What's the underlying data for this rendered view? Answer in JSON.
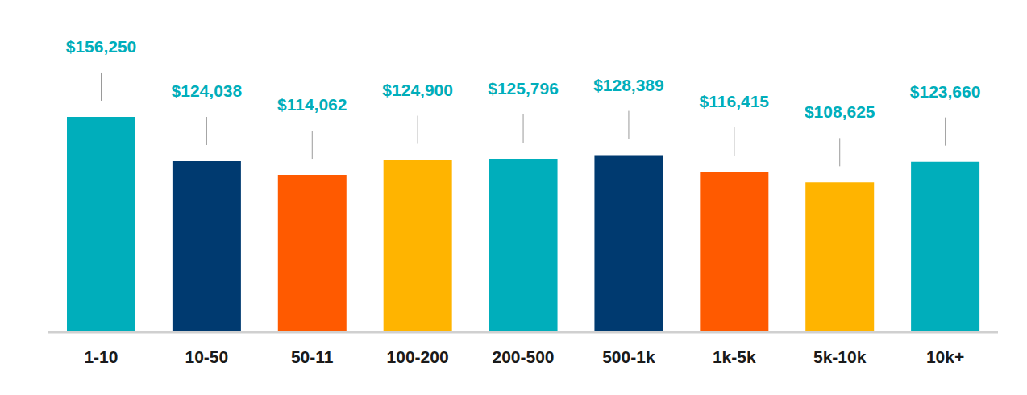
{
  "chart_data": {
    "type": "bar",
    "categories": [
      "1-10",
      "10-50",
      "50-11",
      "100-200",
      "200-500",
      "500-1k",
      "1k-5k",
      "5k-10k",
      "10k+"
    ],
    "values": [
      156250,
      124038,
      114062,
      124900,
      125796,
      128389,
      116415,
      108625,
      123660
    ],
    "value_labels": [
      "$156,250",
      "$124,038",
      "$114,062",
      "$124,900",
      "$125,796",
      "$128,389",
      "$116,415",
      "$108,625",
      "$123,660"
    ],
    "colors": [
      "#00AEBB",
      "#003A70",
      "#FF5A00",
      "#FFB400",
      "#00AEBB",
      "#003A70",
      "#FF5A00",
      "#FFB400",
      "#00AEBB"
    ],
    "ylim": [
      0,
      220000
    ],
    "data_labels": true,
    "tick_labels": "x",
    "grid": false
  }
}
